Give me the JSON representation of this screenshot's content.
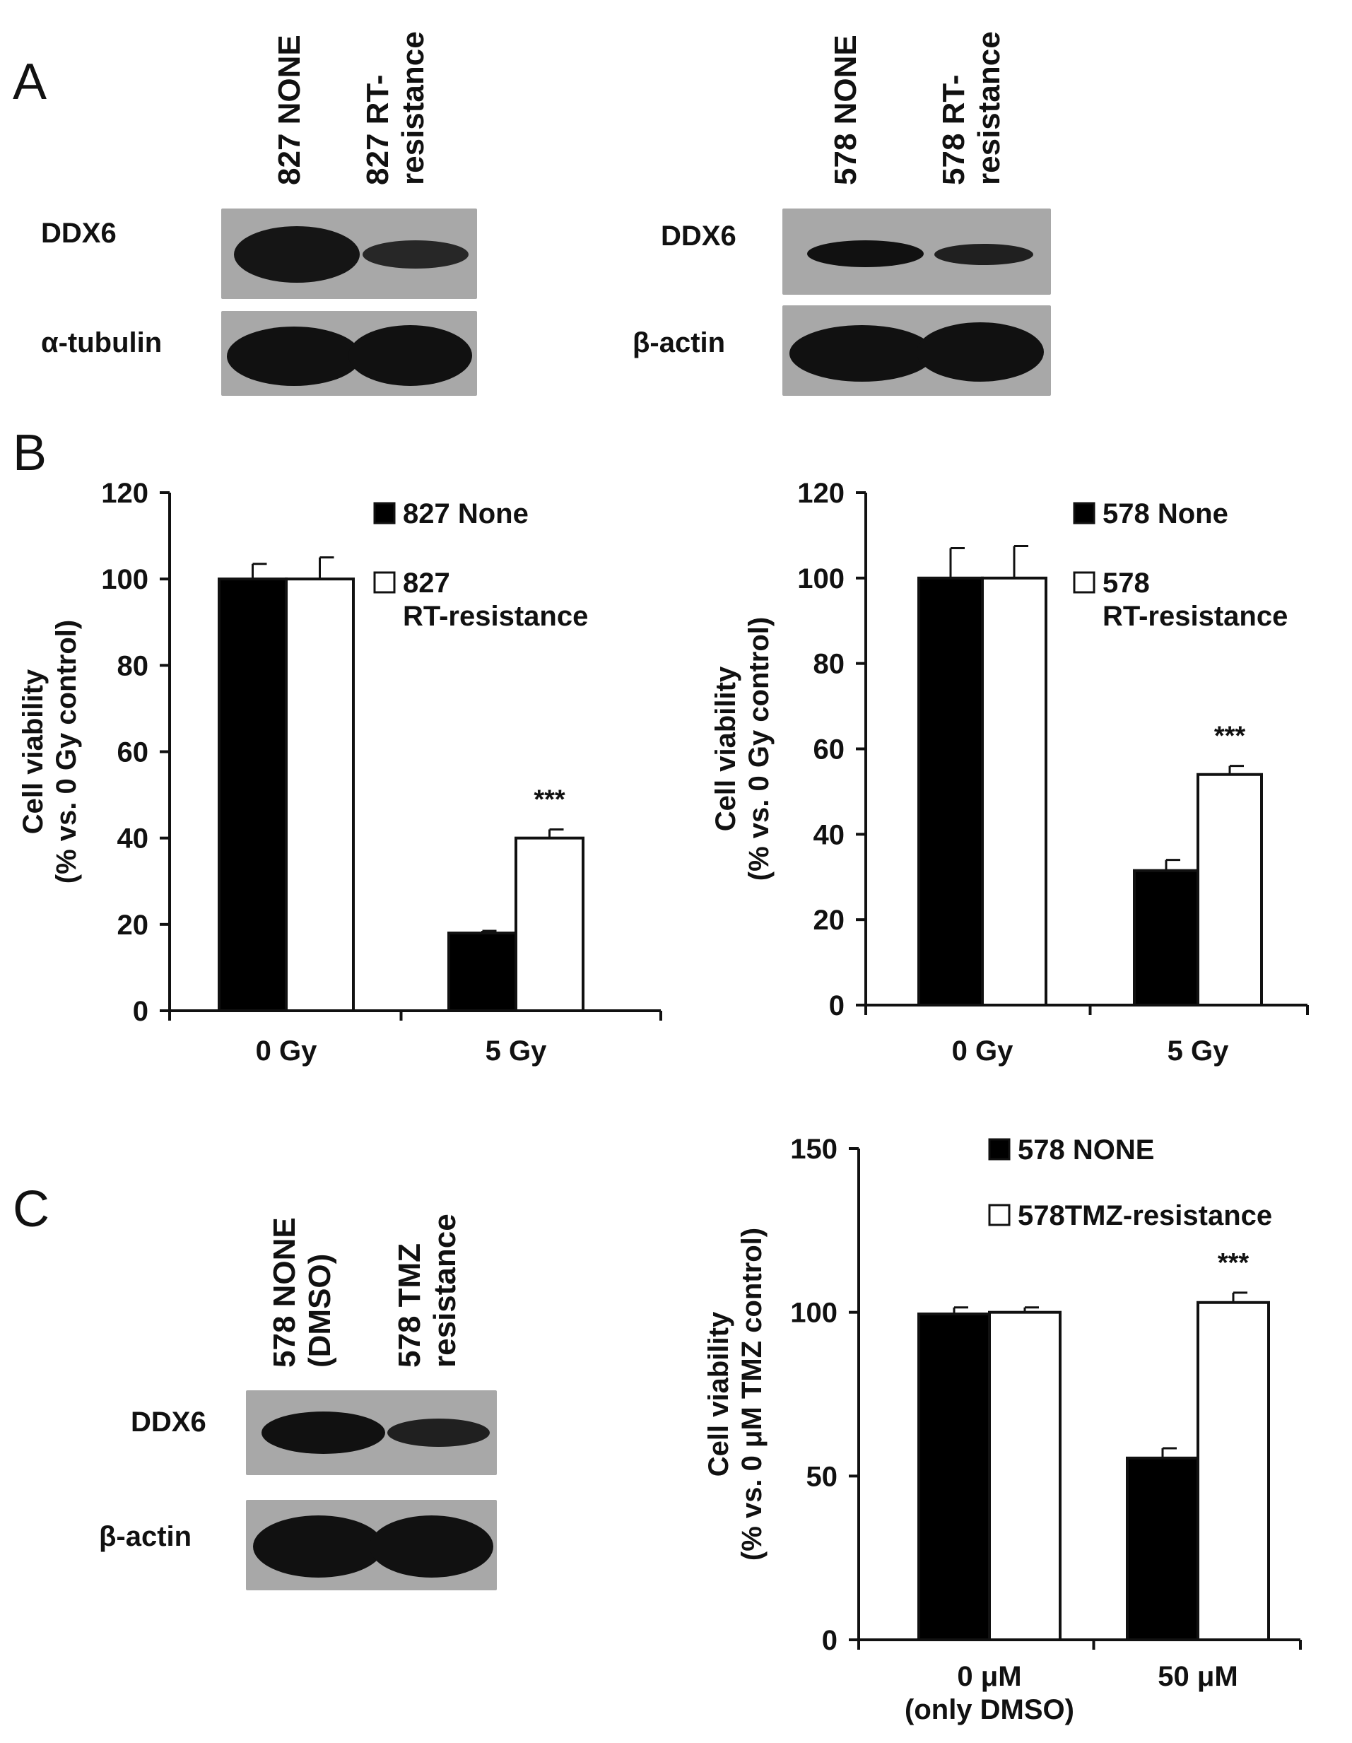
{
  "panels": {
    "a": "A",
    "b": "B",
    "c": "C"
  },
  "blot_a_left": {
    "lanes": [
      "827 NONE",
      "827 RT-\nresistance"
    ],
    "rows": [
      "DDX6",
      "α-tubulin"
    ]
  },
  "blot_a_right": {
    "lanes": [
      "578 NONE",
      "578 RT-\nresistance"
    ],
    "rows": [
      "DDX6",
      "β-actin"
    ]
  },
  "blot_c": {
    "lanes": [
      "578 NONE\n(DMSO)",
      "578 TMZ\nresistance"
    ],
    "rows": [
      "DDX6",
      "β-actin"
    ]
  },
  "colors": {
    "series1": "#000000",
    "series2": "#ffffff",
    "axis": "#111111"
  },
  "chart_data": [
    {
      "type": "bar",
      "ylabel": "Cell viability\n(% vs. 0 Gy control)",
      "categories": [
        "0 Gy",
        "5 Gy"
      ],
      "ylim": [
        0,
        120
      ],
      "yticks": [
        0,
        20,
        40,
        60,
        80,
        100,
        120
      ],
      "series": [
        {
          "name": "827 None",
          "values": [
            100,
            18
          ],
          "errors": [
            3.5,
            0.5
          ]
        },
        {
          "name": "827\nRT-resistance",
          "values": [
            100,
            40
          ],
          "errors": [
            5,
            2
          ]
        }
      ],
      "annotations": [
        {
          "category": "5 Gy",
          "text": "***"
        }
      ],
      "legend": "top-right",
      "grid": false
    },
    {
      "type": "bar",
      "ylabel": "Cell viability\n(% vs. 0 Gy control)",
      "categories": [
        "0 Gy",
        "5 Gy"
      ],
      "ylim": [
        0,
        120
      ],
      "yticks": [
        0,
        20,
        40,
        60,
        80,
        100,
        120
      ],
      "series": [
        {
          "name": "578 None",
          "values": [
            100,
            31.5
          ],
          "errors": [
            7,
            2.5
          ]
        },
        {
          "name": "578\nRT-resistance",
          "values": [
            100,
            54
          ],
          "errors": [
            7.5,
            2
          ]
        }
      ],
      "annotations": [
        {
          "category": "5 Gy",
          "text": "***"
        }
      ],
      "legend": "top-right",
      "grid": false
    },
    {
      "type": "bar",
      "ylabel": "Cell viability\n(% vs. 0 μM TMZ control)",
      "categories": [
        "0 μM\n(only DMSO)",
        "50 μM"
      ],
      "ylim": [
        0,
        150
      ],
      "yticks": [
        0,
        50,
        100,
        150
      ],
      "series": [
        {
          "name": "578 NONE",
          "values": [
            99.5,
            55.5
          ],
          "errors": [
            2,
            3
          ]
        },
        {
          "name": "578TMZ-resistance",
          "values": [
            100,
            103
          ],
          "errors": [
            1.5,
            3
          ]
        }
      ],
      "annotations": [
        {
          "category": "50 μM",
          "text": "***"
        }
      ],
      "legend": "top-right",
      "grid": false
    }
  ]
}
